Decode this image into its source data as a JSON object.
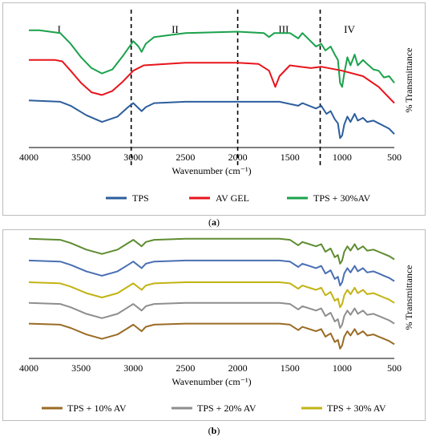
{
  "chart_data": [
    {
      "type": "line",
      "panel_label": "a",
      "xlabel": "Wavenumber (cm⁻¹)",
      "ylabel": "% Transmittance",
      "xlim": [
        4000,
        500
      ],
      "x_reversed": true,
      "x_ticks": [
        "4000",
        "3500",
        "3000",
        "2500",
        "2000",
        "1500",
        "1000",
        "500"
      ],
      "grid": false,
      "legend_position": "bottom",
      "region_labels": [
        {
          "label": "I",
          "x": 3710
        },
        {
          "label": "II",
          "x": 2600
        },
        {
          "label": "III",
          "x": 1560
        },
        {
          "label": "IV",
          "x": 930
        }
      ],
      "dividers": [
        3020,
        2000,
        1210
      ],
      "series": [
        {
          "name": "TPS + 30%AV",
          "color": "#1aa24b",
          "points": [
            [
              4000,
              0.72
            ],
            [
              3900,
              0.72
            ],
            [
              3700,
              0.7
            ],
            [
              3600,
              0.62
            ],
            [
              3500,
              0.52
            ],
            [
              3400,
              0.44
            ],
            [
              3300,
              0.4
            ],
            [
              3200,
              0.43
            ],
            [
              3100,
              0.53
            ],
            [
              3000,
              0.64
            ],
            [
              2950,
              0.6
            ],
            [
              2920,
              0.56
            ],
            [
              2880,
              0.62
            ],
            [
              2800,
              0.67
            ],
            [
              2500,
              0.7
            ],
            [
              2000,
              0.71
            ],
            [
              1750,
              0.7
            ],
            [
              1700,
              0.67
            ],
            [
              1650,
              0.7
            ],
            [
              1500,
              0.7
            ],
            [
              1420,
              0.66
            ],
            [
              1380,
              0.7
            ],
            [
              1250,
              0.6
            ],
            [
              1200,
              0.62
            ],
            [
              1160,
              0.57
            ],
            [
              1110,
              0.6
            ],
            [
              1070,
              0.54
            ],
            [
              1040,
              0.5
            ],
            [
              1020,
              0.33
            ],
            [
              1000,
              0.3
            ],
            [
              980,
              0.4
            ],
            [
              950,
              0.52
            ],
            [
              920,
              0.46
            ],
            [
              880,
              0.54
            ],
            [
              850,
              0.46
            ],
            [
              800,
              0.5
            ],
            [
              760,
              0.47
            ],
            [
              700,
              0.43
            ],
            [
              650,
              0.42
            ],
            [
              600,
              0.37
            ],
            [
              550,
              0.38
            ],
            [
              500,
              0.33
            ]
          ]
        },
        {
          "name": "AV GEL",
          "color": "#e8141b",
          "points": [
            [
              4000,
              0.5
            ],
            [
              3750,
              0.5
            ],
            [
              3680,
              0.49
            ],
            [
              3600,
              0.42
            ],
            [
              3500,
              0.33
            ],
            [
              3400,
              0.26
            ],
            [
              3300,
              0.24
            ],
            [
              3200,
              0.27
            ],
            [
              3100,
              0.34
            ],
            [
              3000,
              0.42
            ],
            [
              2900,
              0.46
            ],
            [
              2500,
              0.48
            ],
            [
              2000,
              0.48
            ],
            [
              1800,
              0.47
            ],
            [
              1700,
              0.42
            ],
            [
              1640,
              0.3
            ],
            [
              1600,
              0.38
            ],
            [
              1500,
              0.46
            ],
            [
              1400,
              0.45
            ],
            [
              1300,
              0.44
            ],
            [
              1200,
              0.45
            ],
            [
              1000,
              0.42
            ],
            [
              800,
              0.38
            ],
            [
              650,
              0.3
            ],
            [
              500,
              0.18
            ]
          ]
        },
        {
          "name": "TPS",
          "color": "#2c5e9e",
          "points": [
            [
              4000,
              0.2
            ],
            [
              3700,
              0.19
            ],
            [
              3600,
              0.16
            ],
            [
              3450,
              0.09
            ],
            [
              3300,
              0.04
            ],
            [
              3150,
              0.08
            ],
            [
              3050,
              0.15
            ],
            [
              3000,
              0.18
            ],
            [
              2960,
              0.15
            ],
            [
              2920,
              0.12
            ],
            [
              2880,
              0.15
            ],
            [
              2800,
              0.18
            ],
            [
              2500,
              0.19
            ],
            [
              2000,
              0.19
            ],
            [
              1600,
              0.19
            ],
            [
              1420,
              0.16
            ],
            [
              1380,
              0.18
            ],
            [
              1250,
              0.14
            ],
            [
              1200,
              0.16
            ],
            [
              1150,
              0.1
            ],
            [
              1110,
              0.12
            ],
            [
              1070,
              0.06
            ],
            [
              1040,
              0.03
            ],
            [
              1020,
              -0.08
            ],
            [
              1000,
              -0.06
            ],
            [
              980,
              0.02
            ],
            [
              950,
              0.08
            ],
            [
              920,
              0.04
            ],
            [
              880,
              0.1
            ],
            [
              850,
              0.05
            ],
            [
              800,
              0.07
            ],
            [
              760,
              0.04
            ],
            [
              700,
              0.05
            ],
            [
              650,
              0.03
            ],
            [
              600,
              0.01
            ],
            [
              550,
              -0.01
            ],
            [
              500,
              -0.05
            ]
          ]
        }
      ]
    },
    {
      "type": "line",
      "panel_label": "b",
      "xlabel": "Wavenumber (cm⁻¹)",
      "ylabel": "% Transmittance",
      "xlim": [
        4000,
        500
      ],
      "x_reversed": true,
      "x_ticks": [
        "4000",
        "3500",
        "3000",
        "2500",
        "2000",
        "1500",
        "1000",
        "500"
      ],
      "grid": false,
      "legend_position": "bottom",
      "series_offsets": [
        0.0,
        0.19,
        0.38,
        0.58,
        0.78
      ],
      "series": [
        {
          "name": "TPS + 10% AV",
          "color": "#9a6b25",
          "offset_index": 0,
          "in_legend": true
        },
        {
          "name": "TPS + 20% AV",
          "color": "#8e8e8e",
          "offset_index": 1,
          "in_legend": true
        },
        {
          "name": "TPS + 30% AV",
          "color": "#c2b414",
          "offset_index": 2,
          "in_legend": true
        },
        {
          "name": "",
          "color": "#4a6fb3",
          "offset_index": 3,
          "in_legend": false
        },
        {
          "name": "",
          "color": "#5e8c31",
          "offset_index": 4,
          "in_legend": false
        }
      ],
      "base_shape": [
        [
          4000,
          0.12
        ],
        [
          3700,
          0.11
        ],
        [
          3600,
          0.08
        ],
        [
          3450,
          0.02
        ],
        [
          3300,
          -0.02
        ],
        [
          3150,
          0.02
        ],
        [
          3050,
          0.08
        ],
        [
          3000,
          0.11
        ],
        [
          2960,
          0.08
        ],
        [
          2920,
          0.05
        ],
        [
          2880,
          0.09
        ],
        [
          2800,
          0.11
        ],
        [
          2500,
          0.12
        ],
        [
          2000,
          0.12
        ],
        [
          1600,
          0.12
        ],
        [
          1500,
          0.11
        ],
        [
          1420,
          0.06
        ],
        [
          1380,
          0.09
        ],
        [
          1250,
          0.05
        ],
        [
          1200,
          0.07
        ],
        [
          1160,
          0.0
        ],
        [
          1110,
          0.03
        ],
        [
          1070,
          -0.05
        ],
        [
          1040,
          -0.03
        ],
        [
          1020,
          -0.11
        ],
        [
          1000,
          -0.08
        ],
        [
          980,
          0.0
        ],
        [
          950,
          0.05
        ],
        [
          920,
          0.01
        ],
        [
          880,
          0.07
        ],
        [
          850,
          0.02
        ],
        [
          800,
          0.05
        ],
        [
          760,
          0.01
        ],
        [
          700,
          0.02
        ],
        [
          650,
          0.0
        ],
        [
          600,
          -0.02
        ],
        [
          550,
          -0.04
        ],
        [
          500,
          -0.07
        ]
      ]
    }
  ],
  "captions": {
    "a": "(a)",
    "b": "(b)"
  }
}
